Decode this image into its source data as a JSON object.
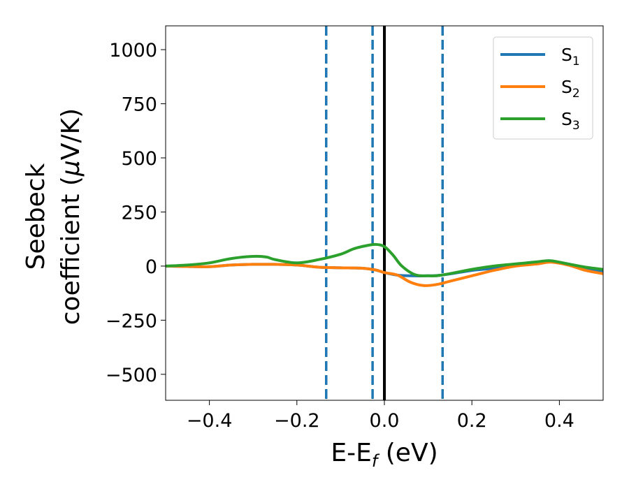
{
  "chart_data": {
    "type": "line",
    "xlabel_main": "E-E",
    "xlabel_sub": "f",
    "xlabel_unit": " (eV)",
    "ylabel_line1": "Seebeck",
    "ylabel_line2": "coefficient  (",
    "ylabel_mu": "μ",
    "ylabel_unit": "V/K)",
    "xlim": [
      -0.5,
      0.5
    ],
    "ylim": [
      -620,
      1110
    ],
    "xticks": [
      -0.4,
      -0.2,
      0.0,
      0.2,
      0.4
    ],
    "xtick_labels": [
      "−0.4",
      "−0.2",
      "0.0",
      "0.2",
      "0.4"
    ],
    "yticks": [
      -500,
      -250,
      0,
      250,
      500,
      750,
      1000
    ],
    "ytick_labels": [
      "−500",
      "−250",
      "0",
      "250",
      "500",
      "750",
      "1000"
    ],
    "grid": false,
    "legend_position": "top-right",
    "vlines": [
      {
        "x": -0.133,
        "style": "dashed",
        "color": "#1f77b4"
      },
      {
        "x": -0.027,
        "style": "dashed",
        "color": "#1f77b4"
      },
      {
        "x": 0.0,
        "style": "solid",
        "color": "#000000"
      },
      {
        "x": 0.133,
        "style": "dashed",
        "color": "#1f77b4"
      }
    ],
    "series": [
      {
        "name": "S",
        "subscript": "1",
        "color": "#1f77b4",
        "x": [
          -0.5,
          -0.45,
          -0.4,
          -0.35,
          -0.3,
          -0.25,
          -0.2,
          -0.15,
          -0.1,
          -0.05,
          -0.02,
          0.0,
          0.03,
          0.06,
          0.1,
          0.13,
          0.2,
          0.25,
          0.3,
          0.35,
          0.38,
          0.42,
          0.46,
          0.5
        ],
        "y": [
          0,
          -2,
          -3,
          5,
          8,
          8,
          5,
          -5,
          -8,
          -10,
          -18,
          -30,
          -42,
          -45,
          -45,
          -42,
          -20,
          -10,
          5,
          15,
          20,
          10,
          -10,
          -25
        ]
      },
      {
        "name": "S",
        "subscript": "2",
        "color": "#ff7f0e",
        "x": [
          -0.5,
          -0.45,
          -0.4,
          -0.35,
          -0.3,
          -0.25,
          -0.2,
          -0.15,
          -0.1,
          -0.05,
          -0.02,
          0.0,
          0.03,
          0.06,
          0.09,
          0.12,
          0.15,
          0.2,
          0.25,
          0.3,
          0.35,
          0.38,
          0.42,
          0.46,
          0.5
        ],
        "y": [
          0,
          -2,
          -3,
          5,
          8,
          8,
          5,
          -5,
          -8,
          -10,
          -18,
          -30,
          -42,
          -75,
          -90,
          -85,
          -70,
          -45,
          -20,
          0,
          10,
          18,
          5,
          -20,
          -35
        ]
      },
      {
        "name": "S",
        "subscript": "3",
        "color": "#2ca02c",
        "x": [
          -0.5,
          -0.45,
          -0.4,
          -0.35,
          -0.3,
          -0.27,
          -0.25,
          -0.2,
          -0.15,
          -0.1,
          -0.07,
          -0.04,
          -0.02,
          0.0,
          0.02,
          0.04,
          0.07,
          0.1,
          0.13,
          0.2,
          0.25,
          0.3,
          0.35,
          0.38,
          0.42,
          0.46,
          0.5
        ],
        "y": [
          0,
          5,
          15,
          35,
          45,
          42,
          30,
          15,
          30,
          55,
          80,
          95,
          100,
          90,
          50,
          0,
          -40,
          -45,
          -42,
          -15,
          0,
          10,
          20,
          25,
          10,
          -5,
          -15
        ]
      }
    ]
  }
}
